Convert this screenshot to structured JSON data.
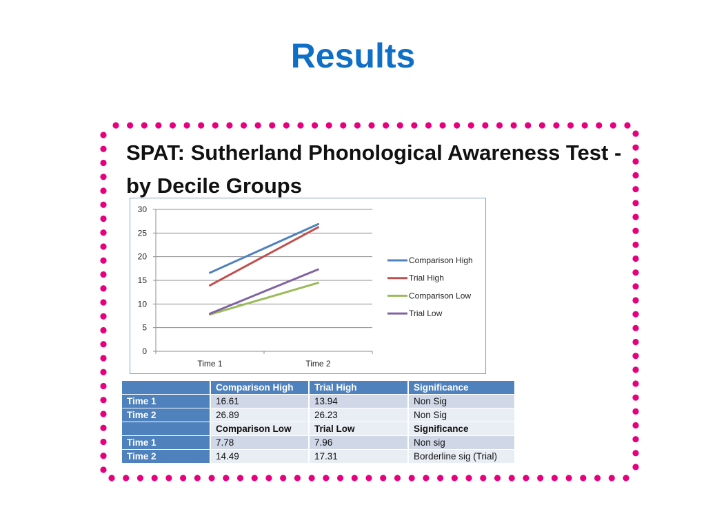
{
  "slide": {
    "title": "Results"
  },
  "colors": {
    "title": "#0F6FC6",
    "frame_dots": "#E6007E",
    "table_header": "#4F81BD"
  },
  "chart_data": {
    "type": "line",
    "title": "SPAT: Sutherland Phonological Awareness Test - by Decile Groups",
    "categories": [
      "Time 1",
      "Time 2"
    ],
    "ylim": [
      0,
      30
    ],
    "yticks": [
      0,
      5,
      10,
      15,
      20,
      25,
      30
    ],
    "grid": true,
    "legend_position": "right",
    "series": [
      {
        "name": "Comparison High",
        "values": [
          16.61,
          26.89
        ],
        "color": "#4F81BD"
      },
      {
        "name": "Trial High",
        "values": [
          13.94,
          26.23
        ],
        "color": "#C0504D"
      },
      {
        "name": "Comparison Low",
        "values": [
          7.78,
          14.49
        ],
        "color": "#9BBB59"
      },
      {
        "name": "Trial Low",
        "values": [
          7.96,
          17.31
        ],
        "color": "#8064A2"
      }
    ]
  },
  "table": {
    "header": [
      "",
      "Comparison High",
      "Trial High",
      "Significance"
    ],
    "rows": [
      {
        "kind": "odd",
        "cells": [
          "Time 1",
          "16.61",
          "13.94",
          "Non Sig"
        ]
      },
      {
        "kind": "even",
        "cells": [
          "Time 2",
          "26.89",
          "26.23",
          "Non Sig"
        ]
      },
      {
        "kind": "subhdr",
        "cells": [
          "",
          "Comparison Low",
          "Trial Low",
          "Significance"
        ]
      },
      {
        "kind": "odd",
        "cells": [
          "Time 1",
          "7.78",
          "7.96",
          "Non sig"
        ]
      },
      {
        "kind": "even",
        "cells": [
          "Time 2",
          "14.49",
          "17.31",
          "Borderline sig (Trial)"
        ]
      }
    ]
  }
}
